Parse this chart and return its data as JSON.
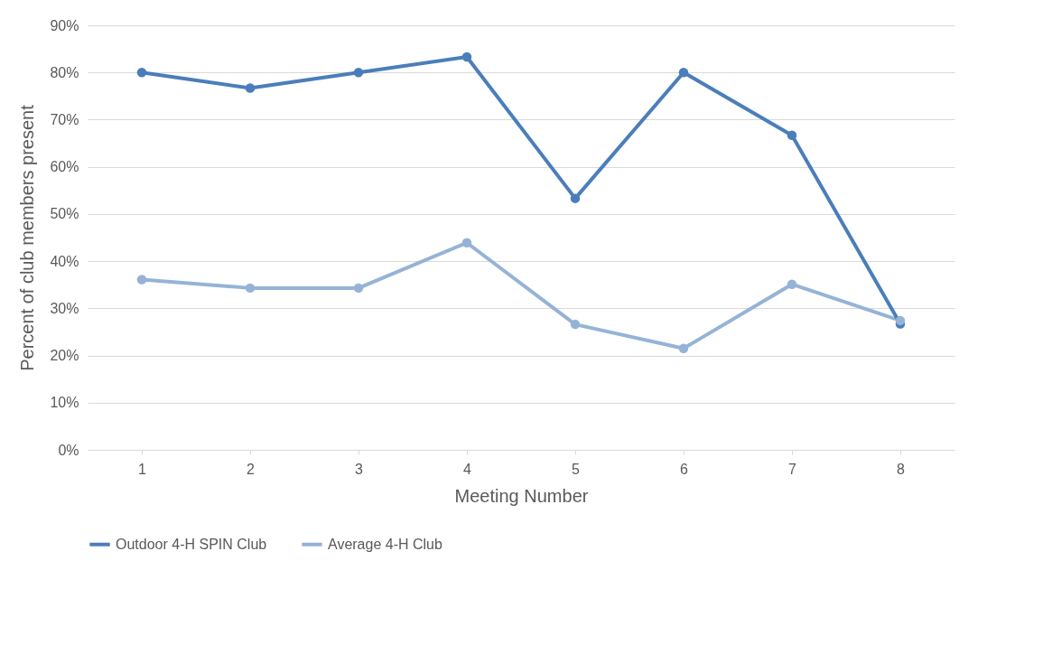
{
  "chart_data": {
    "type": "line",
    "xlabel": "Meeting Number",
    "ylabel": "Percent of club members present",
    "categories": [
      "1",
      "2",
      "3",
      "4",
      "5",
      "6",
      "7",
      "8"
    ],
    "series": [
      {
        "name": "Outdoor 4-H SPIN Club",
        "color": "#4a7ebb",
        "values": [
          80,
          76.7,
          80,
          83.3,
          53.3,
          80,
          66.7,
          26.7
        ]
      },
      {
        "name": "Average 4-H Club",
        "color": "#95b3d7",
        "values": [
          36.1,
          34.3,
          34.3,
          43.9,
          26.6,
          21.5,
          35.1,
          27.4
        ]
      }
    ],
    "ylim": [
      0,
      90
    ],
    "yticks": [
      {
        "value": 0,
        "label": "0%"
      },
      {
        "value": 10,
        "label": "10%"
      },
      {
        "value": 20,
        "label": "20%"
      },
      {
        "value": 30,
        "label": "30%"
      },
      {
        "value": 40,
        "label": "40%"
      },
      {
        "value": 50,
        "label": "50%"
      },
      {
        "value": 60,
        "label": "60%"
      },
      {
        "value": 70,
        "label": "70%"
      },
      {
        "value": 80,
        "label": "80%"
      },
      {
        "value": 90,
        "label": "90%"
      }
    ],
    "grid": "y",
    "legend": "bottom",
    "marker": "circle",
    "line_style": "solid"
  }
}
